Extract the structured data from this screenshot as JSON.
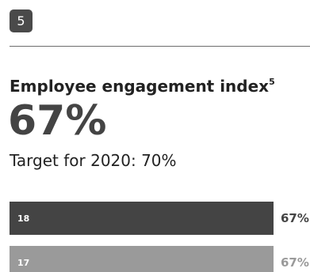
{
  "badge": "5",
  "title": "Employee engagement index",
  "title_footnote": "5",
  "big_value": "67%",
  "target_text": "Target for 2020: 70%",
  "chart_data": {
    "type": "bar",
    "orientation": "horizontal",
    "categories": [
      "18",
      "17"
    ],
    "values": [
      67,
      67
    ],
    "value_labels": [
      "67%",
      "67%"
    ],
    "bar_colors": [
      "#444444",
      "#9a9a9a"
    ],
    "label_colors": [
      "#444444",
      "#9a9a9a"
    ],
    "xlim": [
      0,
      67
    ],
    "grid": false,
    "title": "",
    "xlabel": "",
    "ylabel": ""
  }
}
